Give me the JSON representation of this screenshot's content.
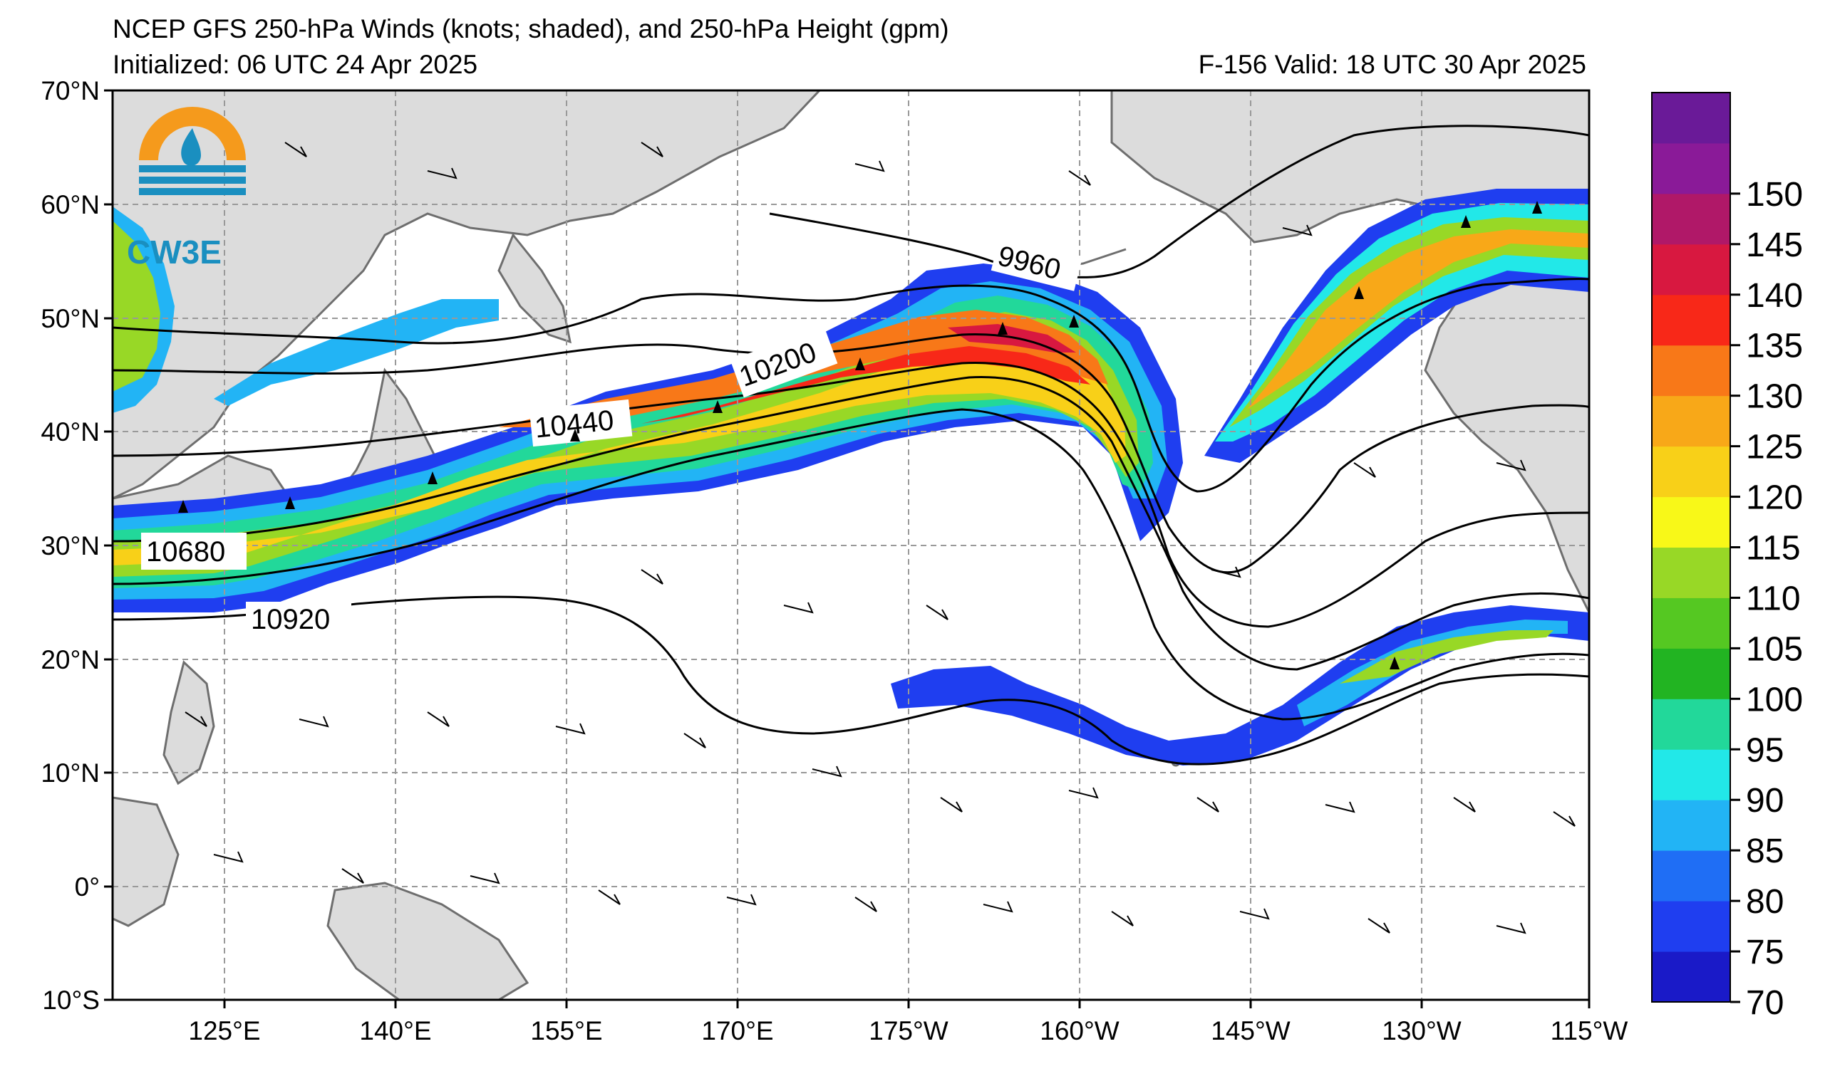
{
  "title_line1": "NCEP GFS 250-hPa Winds (knots; shaded), and 250-hPa Height (gpm)",
  "title_line2": "Initialized: 06 UTC 24 Apr 2025",
  "title_right": "F-156  Valid: 18 UTC 30 Apr 2025",
  "logo_text": "CW3E",
  "lat_labels": [
    "70°N",
    "60°N",
    "50°N",
    "40°N",
    "30°N",
    "20°N",
    "10°N",
    "0°",
    "10°S"
  ],
  "lon_labels": [
    "125°E",
    "140°E",
    "155°E",
    "170°E",
    "175°W",
    "160°W",
    "145°W",
    "130°W",
    "115°W"
  ],
  "contour_labels": [
    "9960",
    "10200",
    "10440",
    "10680",
    "10920"
  ],
  "colorbar": {
    "ticks": [
      "70",
      "75",
      "80",
      "85",
      "90",
      "95",
      "100",
      "105",
      "110",
      "115",
      "120",
      "125",
      "130",
      "135",
      "140",
      "145",
      "150"
    ],
    "colors": [
      "#1a1ac8",
      "#1f3ef0",
      "#1f6ef5",
      "#22b4f5",
      "#22e8e8",
      "#22d89a",
      "#22b422",
      "#55c822",
      "#98d826",
      "#f8f818",
      "#f8d018",
      "#f8a818",
      "#f87818",
      "#f82818",
      "#d81840",
      "#b01868",
      "#8a1a98",
      "#6a1a98"
    ]
  },
  "map": {
    "land_color": "#dcdcdc",
    "coast_color": "#6e6e6e",
    "grid_color": "#999999"
  }
}
